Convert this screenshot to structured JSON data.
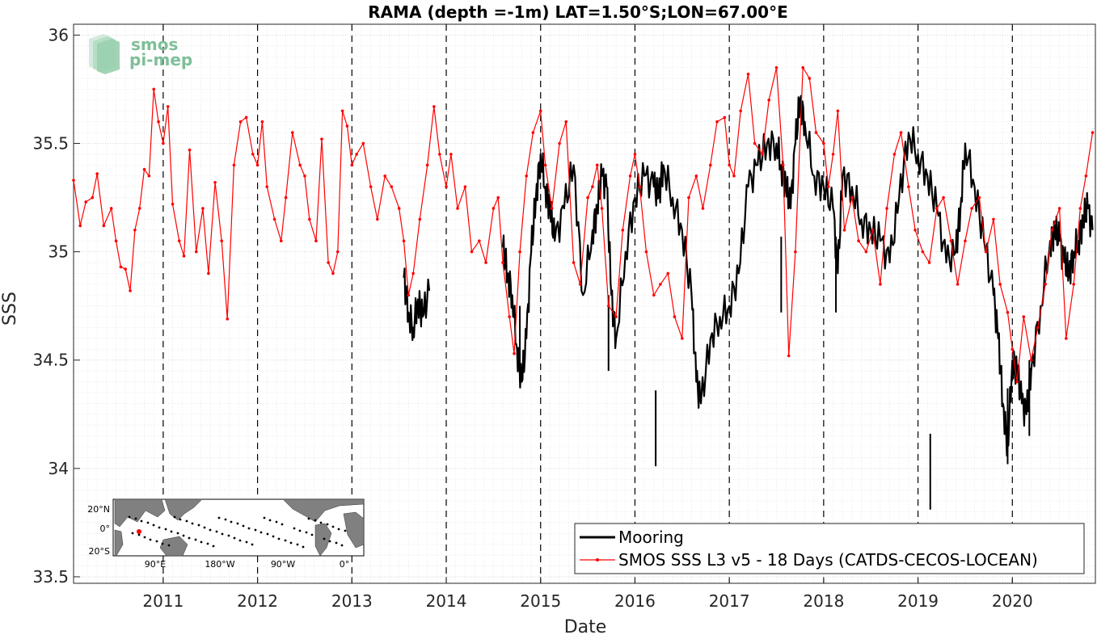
{
  "chart_data": {
    "type": "line",
    "title": "RAMA (depth =-1m) LAT=1.50°S;LON=67.00°E",
    "xlabel": "Date",
    "ylabel": "SSS",
    "xlim": [
      2010.05,
      2020.88
    ],
    "ylim": [
      33.47,
      36.05
    ],
    "x_tick_labels": [
      "2011",
      "2012",
      "2013",
      "2014",
      "2015",
      "2016",
      "2017",
      "2018",
      "2019",
      "2020"
    ],
    "y_tick_labels": [
      "33.5",
      "34",
      "34.5",
      "35",
      "35.5",
      "36"
    ],
    "grid": true,
    "vertical_dashed_lines_at_years": true,
    "legend_placement": "bottom-right",
    "series": [
      {
        "name": "Mooring",
        "color": "#000000",
        "style": "thick-line",
        "x": [
          2013.55,
          2013.6,
          2013.65,
          2013.7,
          2013.75,
          2013.82,
          2014.6,
          2014.65,
          2014.7,
          2014.75,
          2014.8,
          2014.85,
          2014.9,
          2014.95,
          2015.0,
          2015.05,
          2015.1,
          2015.15,
          2015.25,
          2015.35,
          2015.45,
          2015.55,
          2015.6,
          2015.65,
          2015.7,
          2015.75,
          2015.8,
          2015.9,
          2016.0,
          2016.1,
          2016.2,
          2016.25,
          2016.3,
          2016.4,
          2016.5,
          2016.6,
          2016.65,
          2016.7,
          2016.8,
          2016.9,
          2017.0,
          2017.1,
          2017.2,
          2017.3,
          2017.4,
          2017.5,
          2017.55,
          2017.6,
          2017.65,
          2017.7,
          2017.75,
          2017.8,
          2017.9,
          2018.0,
          2018.1,
          2018.15,
          2018.2,
          2018.3,
          2018.4,
          2018.5,
          2018.6,
          2018.7,
          2018.8,
          2018.9,
          2019.0,
          2019.1,
          2019.2,
          2019.3,
          2019.4,
          2019.45,
          2019.5,
          2019.6,
          2019.7,
          2019.8,
          2019.85,
          2019.9,
          2019.95,
          2020.0,
          2020.05,
          2020.1,
          2020.15,
          2020.2,
          2020.3,
          2020.4,
          2020.45,
          2020.5,
          2020.55,
          2020.6,
          2020.65,
          2020.7,
          2020.75,
          2020.8,
          2020.85
        ],
        "y": [
          34.88,
          34.72,
          34.65,
          34.78,
          34.7,
          34.82,
          35.02,
          34.9,
          34.8,
          34.55,
          34.4,
          34.6,
          35.0,
          35.25,
          35.45,
          35.3,
          35.2,
          35.05,
          35.2,
          35.4,
          34.8,
          35.1,
          35.2,
          35.35,
          35.3,
          34.8,
          34.6,
          35.0,
          35.25,
          35.35,
          35.3,
          35.25,
          35.4,
          35.25,
          35.1,
          34.8,
          34.4,
          34.3,
          34.6,
          34.7,
          34.75,
          34.9,
          35.3,
          35.4,
          35.5,
          35.5,
          35.4,
          35.3,
          35.2,
          35.5,
          35.7,
          35.6,
          35.35,
          35.3,
          35.2,
          34.9,
          35.35,
          35.3,
          35.15,
          35.1,
          35.05,
          34.95,
          35.25,
          35.55,
          35.45,
          35.35,
          35.2,
          34.95,
          35.0,
          35.2,
          35.5,
          35.3,
          35.05,
          34.8,
          34.6,
          34.3,
          34.1,
          34.5,
          34.45,
          34.3,
          34.25,
          34.45,
          34.75,
          35.05,
          35.1,
          35.05,
          34.95,
          34.9,
          35.0,
          35.05,
          35.15,
          35.2,
          35.1
        ],
        "spikes": [
          {
            "x": 2014.78,
            "y": 34.4
          },
          {
            "x": 2016.22,
            "y": 34.01
          },
          {
            "x": 2017.55,
            "y": 34.72
          },
          {
            "x": 2018.13,
            "y": 34.72
          },
          {
            "x": 2019.13,
            "y": 33.81
          },
          {
            "x": 2019.95,
            "y": 34.02
          },
          {
            "x": 2020.18,
            "y": 34.15
          },
          {
            "x": 2015.72,
            "y": 34.45
          }
        ]
      },
      {
        "name": "SMOS SSS L3 v5 - 18 Days (CATDS-CECOS-LOCEAN)",
        "color": "#ff0000",
        "style": "thin-line-with-dots",
        "x": [
          2010.05,
          2010.12,
          2010.18,
          2010.25,
          2010.3,
          2010.37,
          2010.45,
          2010.5,
          2010.55,
          2010.6,
          2010.65,
          2010.7,
          2010.75,
          2010.8,
          2010.85,
          2010.9,
          2010.95,
          2011.0,
          2011.05,
          2011.1,
          2011.17,
          2011.22,
          2011.28,
          2011.35,
          2011.42,
          2011.48,
          2011.55,
          2011.62,
          2011.68,
          2011.75,
          2011.82,
          2011.88,
          2011.95,
          2012.0,
          2012.05,
          2012.1,
          2012.18,
          2012.25,
          2012.3,
          2012.37,
          2012.45,
          2012.5,
          2012.55,
          2012.62,
          2012.68,
          2012.75,
          2012.8,
          2012.85,
          2012.9,
          2012.95,
          2013.0,
          2013.05,
          2013.12,
          2013.2,
          2013.27,
          2013.35,
          2013.42,
          2013.5,
          2013.55,
          2013.6,
          2013.65,
          2013.72,
          2013.8,
          2013.87,
          2013.93,
          2014.0,
          2014.05,
          2014.12,
          2014.2,
          2014.27,
          2014.35,
          2014.42,
          2014.5,
          2014.55,
          2014.6,
          2014.67,
          2014.72,
          2014.78,
          2014.85,
          2014.92,
          2015.0,
          2015.05,
          2015.12,
          2015.2,
          2015.27,
          2015.35,
          2015.42,
          2015.5,
          2015.55,
          2015.6,
          2015.65,
          2015.72,
          2015.8,
          2015.87,
          2015.95,
          2016.0,
          2016.05,
          2016.12,
          2016.2,
          2016.27,
          2016.35,
          2016.42,
          2016.5,
          2016.57,
          2016.65,
          2016.72,
          2016.8,
          2016.87,
          2016.95,
          2017.0,
          2017.05,
          2017.12,
          2017.2,
          2017.27,
          2017.35,
          2017.42,
          2017.5,
          2017.57,
          2017.63,
          2017.7,
          2017.78,
          2017.85,
          2017.92,
          2018.0,
          2018.05,
          2018.1,
          2018.15,
          2018.22,
          2018.3,
          2018.37,
          2018.45,
          2018.52,
          2018.6,
          2018.67,
          2018.75,
          2018.82,
          2018.9,
          2018.97,
          2019.05,
          2019.12,
          2019.2,
          2019.27,
          2019.35,
          2019.42,
          2019.5,
          2019.57,
          2019.65,
          2019.72,
          2019.8,
          2019.87,
          2019.95,
          2020.0,
          2020.05,
          2020.12,
          2020.2,
          2020.27,
          2020.35,
          2020.42,
          2020.5,
          2020.57,
          2020.65,
          2020.72,
          2020.78,
          2020.85
        ],
        "y": [
          35.33,
          35.12,
          35.23,
          35.25,
          35.36,
          35.12,
          35.2,
          35.05,
          34.93,
          34.92,
          34.82,
          35.1,
          35.2,
          35.38,
          35.35,
          35.75,
          35.6,
          35.5,
          35.67,
          35.22,
          35.05,
          34.98,
          35.47,
          35.0,
          35.2,
          34.9,
          35.32,
          35.05,
          34.69,
          35.4,
          35.6,
          35.62,
          35.45,
          35.4,
          35.6,
          35.3,
          35.15,
          35.05,
          35.25,
          35.55,
          35.4,
          35.35,
          35.15,
          35.05,
          35.52,
          34.95,
          34.9,
          35.0,
          35.65,
          35.58,
          35.4,
          35.45,
          35.5,
          35.3,
          35.15,
          35.35,
          35.3,
          35.2,
          35.05,
          34.8,
          34.9,
          35.15,
          35.4,
          35.67,
          35.45,
          35.3,
          35.45,
          35.2,
          35.3,
          35.0,
          35.05,
          34.95,
          35.2,
          35.25,
          34.95,
          34.7,
          34.53,
          35.0,
          35.35,
          35.55,
          35.65,
          35.4,
          35.2,
          35.5,
          35.6,
          34.95,
          34.85,
          35.25,
          35.3,
          35.4,
          35.2,
          34.75,
          34.7,
          35.1,
          35.35,
          35.45,
          35.3,
          35.0,
          34.8,
          34.85,
          34.9,
          34.7,
          34.6,
          35.25,
          35.35,
          35.2,
          35.4,
          35.6,
          35.62,
          35.4,
          35.35,
          35.65,
          35.82,
          35.5,
          35.45,
          35.7,
          35.85,
          35.4,
          34.52,
          35.0,
          35.85,
          35.8,
          35.55,
          35.5,
          35.3,
          35.45,
          35.65,
          35.1,
          35.25,
          35.05,
          35.0,
          35.1,
          34.85,
          35.2,
          35.45,
          35.55,
          35.3,
          35.1,
          35.0,
          34.95,
          35.2,
          35.25,
          35.05,
          34.85,
          35.05,
          35.2,
          35.25,
          35.0,
          35.15,
          34.85,
          34.72,
          34.55,
          34.4,
          34.7,
          34.5,
          34.65,
          34.85,
          35.1,
          35.2,
          34.6,
          34.85,
          35.2,
          35.35,
          35.55
        ]
      }
    ]
  },
  "logo": {
    "line1": "smos",
    "line2": "pi-mep"
  },
  "inset_map": {
    "lat_labels": [
      "20°N",
      "0°",
      "20°S"
    ],
    "lon_labels": [
      "90°E",
      "180°W",
      "90°W",
      "0°"
    ],
    "land_color": "#808080",
    "marker_color": "#ff0000"
  }
}
